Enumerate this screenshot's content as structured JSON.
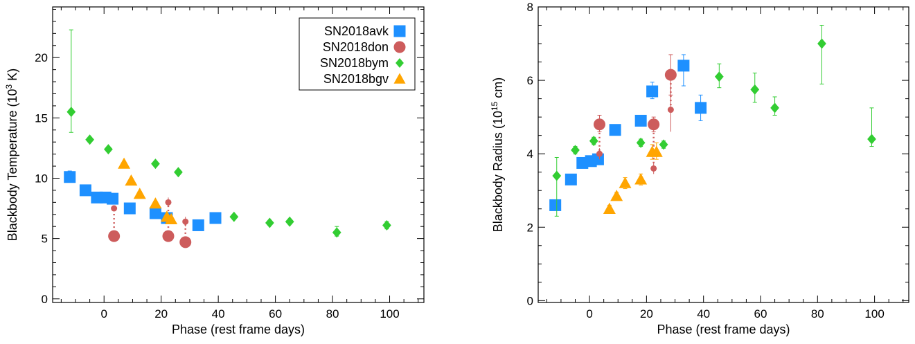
{
  "colors": {
    "SN2018avk": "#1e90ff",
    "SN2018don": "#cd5c5c",
    "SN2018bym": "#32cd32",
    "SN2018bgv": "#ffa500",
    "axis": "#000000"
  },
  "chart_data": [
    {
      "type": "scatter",
      "title": "",
      "xlabel": "Phase (rest frame days)",
      "ylabel_main": "Blackbody Temperature (10",
      "ylabel_sup": "3",
      "ylabel_tail": " K)",
      "xlim": [
        -18,
        112
      ],
      "ylim": [
        -0.3,
        24.2
      ],
      "xticks": [
        0,
        20,
        40,
        60,
        80,
        100
      ],
      "yticks": [
        0,
        5,
        10,
        15,
        20
      ],
      "xminor": 5,
      "yminor": 1,
      "legend": {
        "placement": "top-right",
        "entries": [
          {
            "name": "SN2018avk",
            "marker": "square"
          },
          {
            "name": "SN2018don",
            "marker": "circle"
          },
          {
            "name": "SN2018bym",
            "marker": "diamond"
          },
          {
            "name": "SN2018bgv",
            "marker": "triangle"
          }
        ]
      },
      "series": [
        {
          "name": "SN2018avk",
          "marker": "square",
          "points": [
            {
              "x": -12,
              "y": 10.1,
              "lo": 9.9,
              "hi": 10.6
            },
            {
              "x": -6.5,
              "y": 9.0,
              "lo": 8.8,
              "hi": 9.2
            },
            {
              "x": -2.5,
              "y": 8.4,
              "lo": 8.2,
              "hi": 8.6
            },
            {
              "x": 0.5,
              "y": 8.4,
              "lo": 8.2,
              "hi": 8.6
            },
            {
              "x": 3,
              "y": 8.3,
              "lo": 8.1,
              "hi": 8.5
            },
            {
              "x": 9,
              "y": 7.5,
              "lo": 7.3,
              "hi": 7.7
            },
            {
              "x": 18,
              "y": 7.1,
              "lo": 6.9,
              "hi": 7.3
            },
            {
              "x": 22,
              "y": 6.7,
              "lo": 6.3,
              "hi": 7.0
            },
            {
              "x": 33,
              "y": 6.1,
              "lo": 5.9,
              "hi": 6.3
            },
            {
              "x": 39,
              "y": 6.7,
              "lo": 6.5,
              "hi": 6.9
            }
          ]
        },
        {
          "name": "SN2018don",
          "marker": "circle",
          "points": [
            {
              "x": 3.5,
              "y": 5.2,
              "lo": 5.0,
              "hi": 5.4
            },
            {
              "x": 22.5,
              "y": 5.2,
              "lo": 5.0,
              "hi": 5.4
            },
            {
              "x": 28.5,
              "y": 4.7,
              "lo": 4.5,
              "hi": 4.9
            }
          ],
          "small_points": [
            {
              "x": 3.5,
              "y": 7.5,
              "lo": 7.3,
              "hi": 7.7
            },
            {
              "x": 22.5,
              "y": 8.0,
              "lo": 7.7,
              "hi": 8.4
            },
            {
              "x": 28.5,
              "y": 6.4,
              "lo": 6.0,
              "hi": 6.8
            }
          ]
        },
        {
          "name": "SN2018bym",
          "marker": "diamond",
          "points": [
            {
              "x": -11.5,
              "y": 15.5,
              "lo": 13.8,
              "hi": 22.3
            },
            {
              "x": -5,
              "y": 13.2,
              "lo": 13.0,
              "hi": 13.4
            },
            {
              "x": 1.5,
              "y": 12.4,
              "lo": 12.2,
              "hi": 12.6
            },
            {
              "x": 18,
              "y": 11.2,
              "lo": 11.0,
              "hi": 11.4
            },
            {
              "x": 26,
              "y": 10.5,
              "lo": 10.3,
              "hi": 10.7
            },
            {
              "x": 45.5,
              "y": 6.8,
              "lo": 6.6,
              "hi": 7.0
            },
            {
              "x": 58,
              "y": 6.3,
              "lo": 6.1,
              "hi": 6.5
            },
            {
              "x": 65,
              "y": 6.4,
              "lo": 6.2,
              "hi": 6.6
            },
            {
              "x": 81.5,
              "y": 5.5,
              "lo": 5.2,
              "hi": 6.0
            },
            {
              "x": 99,
              "y": 6.1,
              "lo": 5.8,
              "hi": 6.4
            }
          ]
        },
        {
          "name": "SN2018bgv",
          "marker": "triangle",
          "points": [
            {
              "x": 7,
              "y": 11.2,
              "lo": 11.0,
              "hi": 11.4
            },
            {
              "x": 9.5,
              "y": 9.8,
              "lo": 9.6,
              "hi": 10.0
            },
            {
              "x": 12.5,
              "y": 8.7,
              "lo": 8.5,
              "hi": 8.9
            },
            {
              "x": 18,
              "y": 7.9,
              "lo": 7.7,
              "hi": 8.1
            },
            {
              "x": 22,
              "y": 6.8,
              "lo": 6.6,
              "hi": 7.0
            },
            {
              "x": 23.5,
              "y": 6.6,
              "lo": 6.4,
              "hi": 6.8
            }
          ]
        }
      ]
    },
    {
      "type": "scatter",
      "title": "",
      "xlabel": "Phase (rest frame days)",
      "ylabel_main": "Blackbody Radius (10",
      "ylabel_sup": "15",
      "ylabel_tail": " cm)",
      "xlim": [
        -18,
        112
      ],
      "ylim": [
        -0.05,
        8.0
      ],
      "xticks": [
        0,
        20,
        40,
        60,
        80,
        100
      ],
      "yticks": [
        0,
        2,
        4,
        6,
        8
      ],
      "xminor": 5,
      "yminor": 0.5,
      "series": [
        {
          "name": "SN2018avk",
          "marker": "square",
          "points": [
            {
              "x": -12,
              "y": 2.6,
              "lo": 2.5,
              "hi": 2.7
            },
            {
              "x": -6.5,
              "y": 3.3,
              "lo": 3.2,
              "hi": 3.4
            },
            {
              "x": -2.5,
              "y": 3.75,
              "lo": 3.65,
              "hi": 3.85
            },
            {
              "x": 0.5,
              "y": 3.8,
              "lo": 3.7,
              "hi": 3.9
            },
            {
              "x": 3,
              "y": 3.85,
              "lo": 3.75,
              "hi": 3.95
            },
            {
              "x": 9,
              "y": 4.65,
              "lo": 4.55,
              "hi": 4.75
            },
            {
              "x": 18,
              "y": 4.9,
              "lo": 4.8,
              "hi": 5.0
            },
            {
              "x": 22,
              "y": 5.7,
              "lo": 5.5,
              "hi": 5.95
            },
            {
              "x": 33,
              "y": 6.4,
              "lo": 5.85,
              "hi": 6.7
            },
            {
              "x": 39,
              "y": 5.25,
              "lo": 4.9,
              "hi": 5.6
            }
          ]
        },
        {
          "name": "SN2018don",
          "marker": "circle",
          "points": [
            {
              "x": 3.5,
              "y": 4.8,
              "lo": 4.6,
              "hi": 5.05
            },
            {
              "x": 22.5,
              "y": 4.8,
              "lo": 4.6,
              "hi": 5.0
            },
            {
              "x": 28.5,
              "y": 6.15,
              "lo": 5.6,
              "hi": 6.7
            }
          ],
          "small_points": [
            {
              "x": 3.5,
              "y": 4.0,
              "lo": 3.85,
              "hi": 4.15
            },
            {
              "x": 22.5,
              "y": 3.6,
              "lo": 3.45,
              "hi": 3.75
            },
            {
              "x": 28.5,
              "y": 5.2,
              "lo": 4.6,
              "hi": 5.8
            }
          ]
        },
        {
          "name": "SN2018bym",
          "marker": "diamond",
          "points": [
            {
              "x": -11.5,
              "y": 3.4,
              "lo": 2.3,
              "hi": 3.9
            },
            {
              "x": -5,
              "y": 4.1,
              "lo": 4.0,
              "hi": 4.2
            },
            {
              "x": 1.5,
              "y": 4.35,
              "lo": 4.25,
              "hi": 4.45
            },
            {
              "x": 18,
              "y": 4.3,
              "lo": 4.2,
              "hi": 4.4
            },
            {
              "x": 26,
              "y": 4.25,
              "lo": 4.15,
              "hi": 4.35
            },
            {
              "x": 45.5,
              "y": 6.1,
              "lo": 5.8,
              "hi": 6.45
            },
            {
              "x": 58,
              "y": 5.75,
              "lo": 5.4,
              "hi": 6.2
            },
            {
              "x": 65,
              "y": 5.25,
              "lo": 5.05,
              "hi": 5.55
            },
            {
              "x": 81.5,
              "y": 7.0,
              "lo": 5.9,
              "hi": 7.5
            },
            {
              "x": 99,
              "y": 4.4,
              "lo": 4.2,
              "hi": 5.25
            }
          ]
        },
        {
          "name": "SN2018bgv",
          "marker": "triangle",
          "points": [
            {
              "x": 7,
              "y": 2.5,
              "lo": 2.4,
              "hi": 2.6
            },
            {
              "x": 9.5,
              "y": 2.85,
              "lo": 2.75,
              "hi": 2.95
            },
            {
              "x": 12.5,
              "y": 3.2,
              "lo": 3.05,
              "hi": 3.35
            },
            {
              "x": 18,
              "y": 3.3,
              "lo": 3.15,
              "hi": 3.45
            },
            {
              "x": 22,
              "y": 4.05,
              "lo": 3.85,
              "hi": 4.25
            },
            {
              "x": 23.5,
              "y": 4.05,
              "lo": 3.85,
              "hi": 4.3
            }
          ]
        }
      ]
    }
  ]
}
